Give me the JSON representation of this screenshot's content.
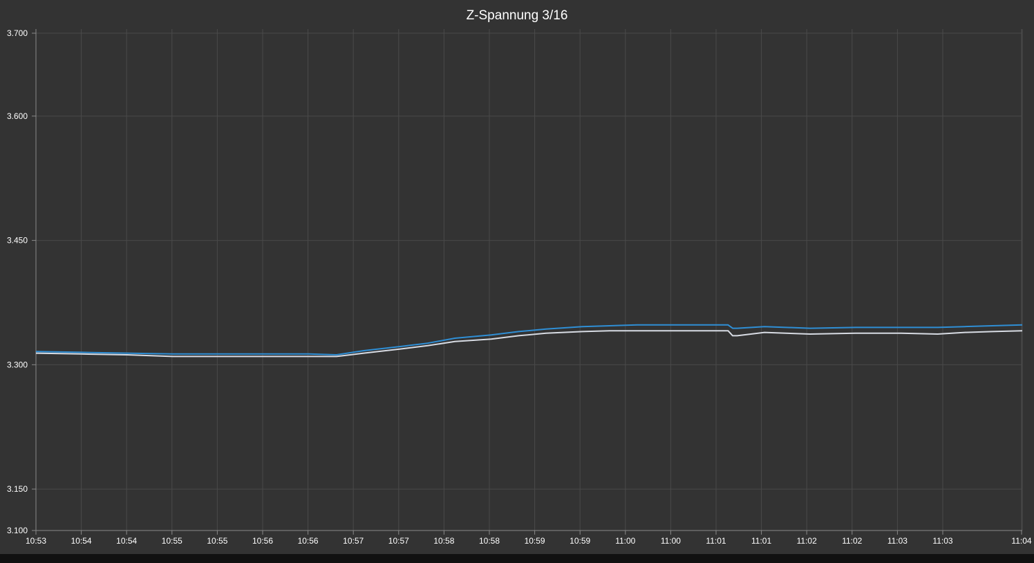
{
  "chart_data": {
    "type": "line",
    "title": "Z-Spannung 3/16",
    "xlabel": "",
    "ylabel": "",
    "x_tick_labels": [
      "10:53",
      "10:54",
      "10:54",
      "10:55",
      "10:55",
      "10:56",
      "10:56",
      "10:57",
      "10:57",
      "10:58",
      "10:58",
      "10:59",
      "10:59",
      "11:00",
      "11:00",
      "11:01",
      "11:01",
      "11:02",
      "11:02",
      "11:03",
      "11:03",
      "11:04"
    ],
    "x_range_minutes": [
      0,
      10.83
    ],
    "y_ticks": [
      "3.100",
      "3.150",
      "3.300",
      "3.450",
      "3.600",
      "3.700"
    ],
    "ylim": [
      3.1,
      3.7
    ],
    "grid": true,
    "series": [
      {
        "color": "#2f8fd6",
        "x": [
          0,
          0.5,
          1,
          1.5,
          2,
          2.5,
          3,
          3.3,
          3.6,
          4,
          4.3,
          4.6,
          5,
          5.3,
          5.6,
          6,
          6.3,
          6.6,
          7,
          7.3,
          7.6,
          7.65,
          7.7,
          8,
          8.5,
          9,
          9.5,
          9.9,
          10.2,
          10.5,
          10.83
        ],
        "y": [
          3.316,
          3.315,
          3.314,
          3.313,
          3.313,
          3.313,
          3.313,
          3.312,
          3.317,
          3.322,
          3.326,
          3.332,
          3.336,
          3.34,
          3.343,
          3.346,
          3.347,
          3.348,
          3.348,
          3.348,
          3.348,
          3.344,
          3.344,
          3.346,
          3.344,
          3.345,
          3.345,
          3.345,
          3.346,
          3.347,
          3.348
        ]
      },
      {
        "color": "#d8dce4",
        "x": [
          0,
          0.5,
          1,
          1.5,
          2,
          2.5,
          3,
          3.3,
          3.6,
          4,
          4.3,
          4.6,
          5,
          5.3,
          5.6,
          6,
          6.3,
          6.6,
          7,
          7.3,
          7.6,
          7.65,
          7.7,
          8,
          8.5,
          9,
          9.5,
          9.9,
          10.2,
          10.5,
          10.83
        ],
        "y": [
          3.314,
          3.313,
          3.312,
          3.31,
          3.31,
          3.31,
          3.31,
          3.31,
          3.314,
          3.319,
          3.323,
          3.328,
          3.331,
          3.335,
          3.338,
          3.34,
          3.341,
          3.341,
          3.341,
          3.341,
          3.341,
          3.335,
          3.335,
          3.339,
          3.337,
          3.338,
          3.338,
          3.337,
          3.339,
          3.34,
          3.341
        ]
      }
    ]
  }
}
